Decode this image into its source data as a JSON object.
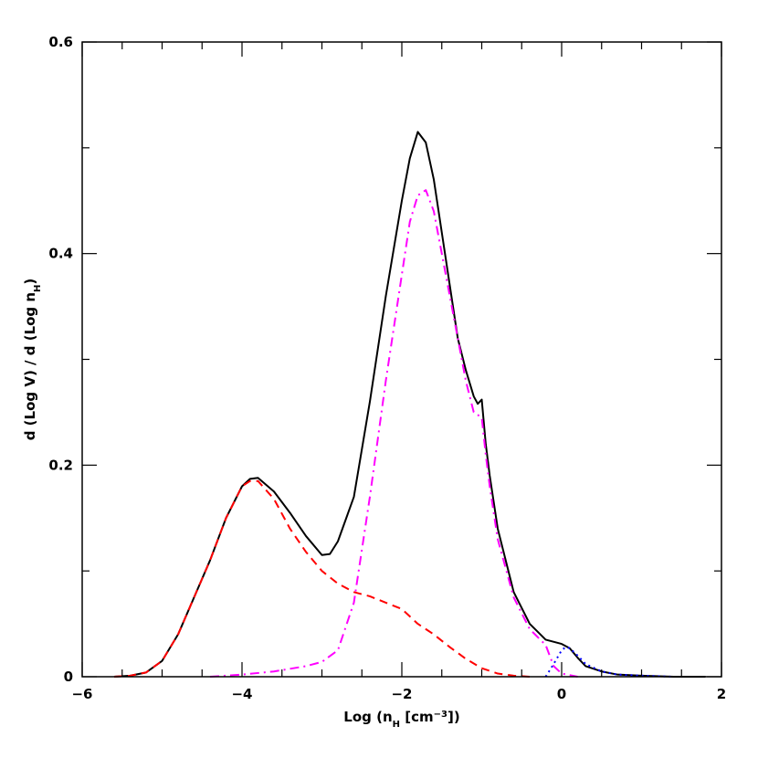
{
  "chart_data": {
    "type": "line",
    "xlabel": "Log (n_H [cm^-3])",
    "ylabel": "d (Log V) / d (Log n_H)",
    "xlim": [
      -6,
      2
    ],
    "ylim": [
      0,
      0.6
    ],
    "x_ticks": [
      -6,
      -4,
      -2,
      0,
      2
    ],
    "y_ticks": [
      0,
      0.2,
      0.4,
      0.6
    ],
    "x_tick_labels": [
      "−6",
      "−4",
      "−2",
      "0",
      "2"
    ],
    "y_tick_labels": [
      "0",
      "0.2",
      "0.4",
      "0.6"
    ],
    "grid": false,
    "legend": "none",
    "series": [
      {
        "color": "#000000",
        "style": "solid",
        "x": [
          -5.6,
          -5.4,
          -5.2,
          -5.0,
          -4.8,
          -4.6,
          -4.4,
          -4.2,
          -4.0,
          -3.9,
          -3.8,
          -3.6,
          -3.4,
          -3.2,
          -3.0,
          -2.9,
          -2.8,
          -2.6,
          -2.4,
          -2.2,
          -2.0,
          -1.9,
          -1.8,
          -1.7,
          -1.6,
          -1.5,
          -1.4,
          -1.3,
          -1.2,
          -1.1,
          -1.05,
          -1.0,
          -0.95,
          -0.9,
          -0.8,
          -0.6,
          -0.4,
          -0.2,
          0.0,
          0.1,
          0.2,
          0.3,
          0.5,
          0.7,
          1.0,
          1.4,
          1.8
        ],
        "y": [
          0.0,
          0.001,
          0.004,
          0.015,
          0.04,
          0.075,
          0.11,
          0.15,
          0.18,
          0.187,
          0.188,
          0.175,
          0.155,
          0.133,
          0.115,
          0.116,
          0.128,
          0.17,
          0.26,
          0.36,
          0.45,
          0.49,
          0.515,
          0.505,
          0.47,
          0.42,
          0.37,
          0.32,
          0.29,
          0.265,
          0.258,
          0.262,
          0.22,
          0.19,
          0.14,
          0.08,
          0.05,
          0.035,
          0.031,
          0.027,
          0.018,
          0.01,
          0.005,
          0.002,
          0.001,
          0.0,
          0.0
        ]
      },
      {
        "color": "#ff0000",
        "style": "dashed",
        "x": [
          -5.6,
          -5.4,
          -5.2,
          -5.0,
          -4.8,
          -4.6,
          -4.4,
          -4.2,
          -4.0,
          -3.9,
          -3.8,
          -3.6,
          -3.4,
          -3.2,
          -3.0,
          -2.8,
          -2.6,
          -2.4,
          -2.2,
          -2.0,
          -1.8,
          -1.6,
          -1.4,
          -1.2,
          -1.0,
          -0.8,
          -0.6,
          -0.4
        ],
        "y": [
          0.0,
          0.001,
          0.004,
          0.015,
          0.04,
          0.075,
          0.11,
          0.15,
          0.18,
          0.185,
          0.185,
          0.168,
          0.14,
          0.118,
          0.1,
          0.088,
          0.08,
          0.076,
          0.07,
          0.064,
          0.05,
          0.04,
          0.028,
          0.017,
          0.008,
          0.003,
          0.001,
          0.0
        ]
      },
      {
        "color": "#ff00ff",
        "style": "dashdot",
        "x": [
          -4.4,
          -4.0,
          -3.6,
          -3.2,
          -3.0,
          -2.8,
          -2.6,
          -2.4,
          -2.2,
          -2.0,
          -1.9,
          -1.8,
          -1.7,
          -1.6,
          -1.5,
          -1.4,
          -1.3,
          -1.2,
          -1.1,
          -1.0,
          -0.95,
          -0.9,
          -0.8,
          -0.6,
          -0.4,
          -0.2,
          -0.1,
          0.0,
          0.2
        ],
        "y": [
          0.0,
          0.002,
          0.005,
          0.01,
          0.014,
          0.025,
          0.07,
          0.17,
          0.28,
          0.38,
          0.43,
          0.455,
          0.46,
          0.44,
          0.4,
          0.36,
          0.32,
          0.28,
          0.25,
          0.245,
          0.21,
          0.18,
          0.13,
          0.075,
          0.045,
          0.03,
          0.01,
          0.003,
          0.0
        ]
      },
      {
        "color": "#0000ff",
        "style": "dotted",
        "x": [
          -0.2,
          -0.1,
          0.0,
          0.05,
          0.1,
          0.2,
          0.3,
          0.5,
          0.7,
          1.0,
          1.4
        ],
        "y": [
          0.0,
          0.012,
          0.025,
          0.028,
          0.027,
          0.02,
          0.012,
          0.005,
          0.002,
          0.001,
          0.0
        ]
      }
    ]
  }
}
